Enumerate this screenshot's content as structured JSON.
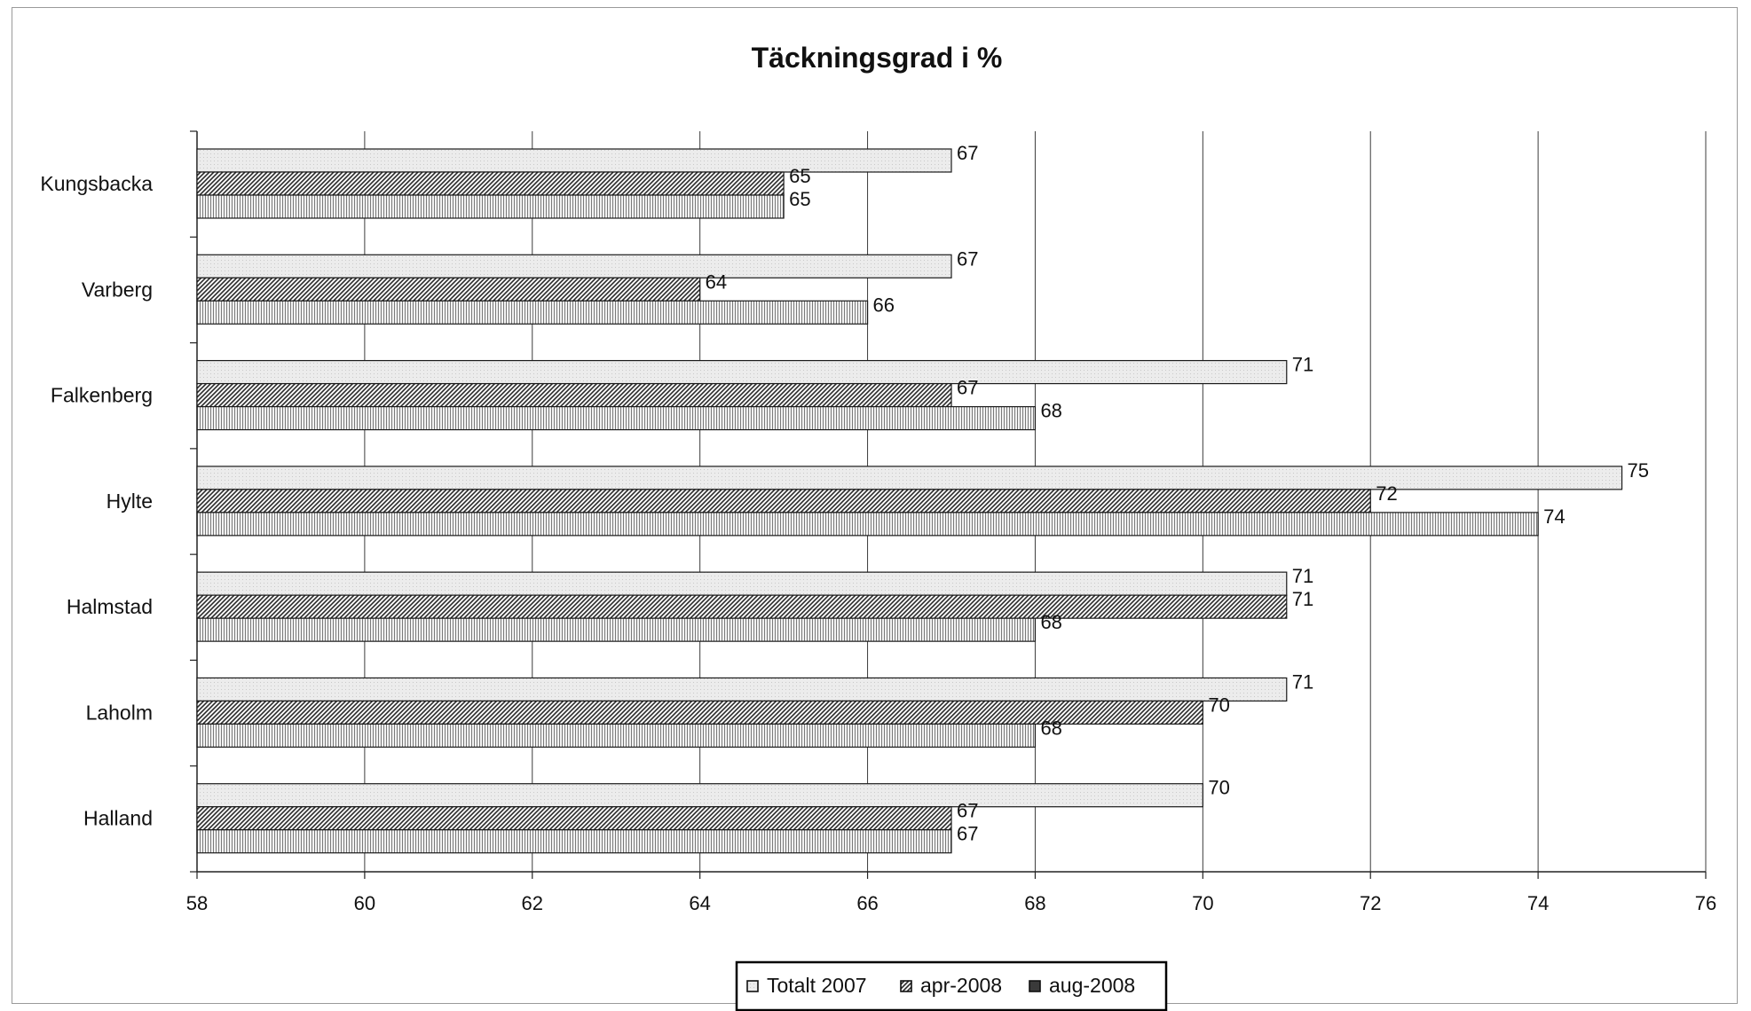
{
  "chart_data": {
    "type": "bar",
    "orientation": "horizontal",
    "title": "Täckningsgrad i  %",
    "categories": [
      "Kungsbacka",
      "Varberg",
      "Falkenberg",
      "Hylte",
      "Halmstad",
      "Laholm",
      "Halland"
    ],
    "series": [
      {
        "name": "Totalt 2007",
        "values": [
          67,
          67,
          71,
          75,
          71,
          71,
          70
        ],
        "pattern": "dots",
        "color": "#e6e6e6"
      },
      {
        "name": "apr-2008",
        "values": [
          65,
          64,
          67,
          72,
          71,
          70,
          67
        ],
        "pattern": "diagonal",
        "color": "#3a3a3a"
      },
      {
        "name": "aug-2008",
        "values": [
          65,
          66,
          68,
          74,
          68,
          68,
          67
        ],
        "pattern": "vertical",
        "color": "#8a8a8a"
      }
    ],
    "xlim": [
      58,
      76
    ],
    "xticks": [
      58,
      60,
      62,
      64,
      66,
      68,
      70,
      72,
      74,
      76
    ],
    "xlabel": "",
    "ylabel": "",
    "grid": "vertical",
    "legend": "bottom-center"
  }
}
